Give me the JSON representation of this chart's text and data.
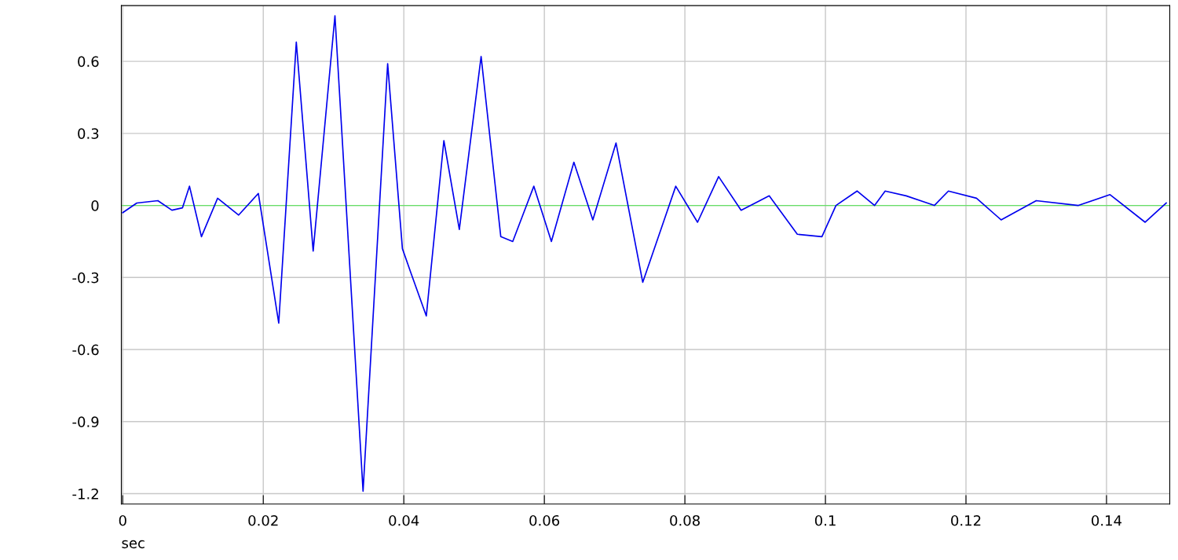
{
  "chart_data": {
    "type": "line",
    "xlabel": "sec",
    "xlim": [
      -0.0002,
      0.149
    ],
    "ylim": [
      -1.243,
      0.832
    ],
    "xticks": [
      0,
      0.02,
      0.04,
      0.06,
      0.08,
      0.1,
      0.12,
      0.14
    ],
    "yticks": [
      -1.2,
      -0.9,
      -0.6,
      -0.3,
      0,
      0.3,
      0.6
    ],
    "grid": true,
    "line_style": "solid",
    "marker": "none",
    "ref_lines": [
      {
        "axis": "y",
        "value": 0,
        "color": "#66e066"
      }
    ],
    "series": [
      {
        "color": "#0000ee",
        "x": [
          0,
          0.002,
          0.005,
          0.007,
          0.0085,
          0.0095,
          0.0112,
          0.0135,
          0.0165,
          0.0193,
          0.0222,
          0.0247,
          0.0271,
          0.0302,
          0.0342,
          0.0377,
          0.0398,
          0.041,
          0.0432,
          0.0457,
          0.0479,
          0.051,
          0.0538,
          0.0555,
          0.0585,
          0.061,
          0.0642,
          0.0669,
          0.0702,
          0.074,
          0.0787,
          0.0818,
          0.0848,
          0.088,
          0.092,
          0.096,
          0.0995,
          0.1015,
          0.1045,
          0.107,
          0.1085,
          0.1115,
          0.1155,
          0.1175,
          0.1215,
          0.125,
          0.13,
          0.136,
          0.1405,
          0.1455,
          0.1485
        ],
        "values": [
          -0.03,
          0.01,
          0.02,
          -0.02,
          -0.01,
          0.08,
          -0.13,
          0.03,
          -0.04,
          0.05,
          -0.49,
          0.68,
          -0.19,
          0.79,
          -1.19,
          0.59,
          -0.18,
          -0.28,
          -0.46,
          0.27,
          -0.1,
          0.62,
          -0.13,
          -0.15,
          0.08,
          -0.15,
          0.18,
          -0.06,
          0.26,
          -0.32,
          0.08,
          -0.07,
          0.12,
          -0.02,
          0.04,
          -0.12,
          -0.13,
          0.0,
          0.06,
          0.0,
          0.06,
          0.04,
          0.0,
          0.06,
          0.03,
          -0.06,
          0.02,
          0.0,
          0.045,
          -0.07,
          0.01
        ]
      }
    ]
  }
}
